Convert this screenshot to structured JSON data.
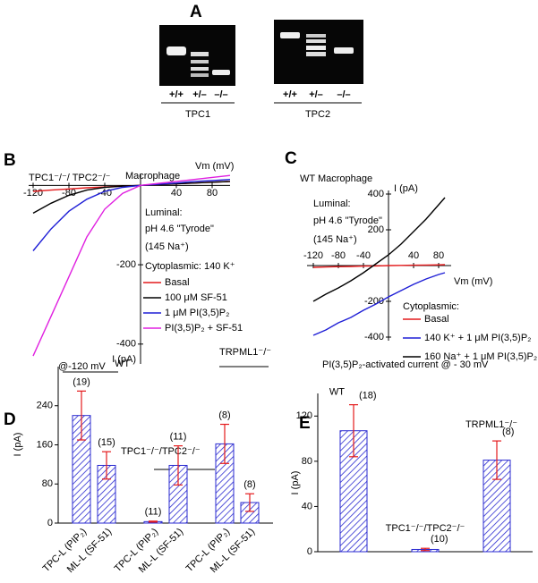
{
  "panel_a": {
    "label": "A",
    "gels": [
      {
        "name": "TPC1",
        "lanes": [
          "+/+",
          "+/–",
          "–/–"
        ]
      },
      {
        "name": "TPC2",
        "lanes": [
          "+/+",
          "+/–",
          "–/–"
        ]
      }
    ]
  },
  "chart_data": [
    {
      "panel": "B",
      "type": "line",
      "title": "TPC1⁻/⁻/ TPC2⁻/⁻",
      "subtitle": "Macrophage",
      "x_label": "Vm (mV)",
      "y_label": "I (pA)",
      "annotations": [
        "Luminal:",
        "pH 4.6 \"Tyrode\"",
        "(145 Na⁺)",
        "Cytoplasmic: 140 K⁺"
      ],
      "x": [
        -120,
        -100,
        -80,
        -60,
        -40,
        -20,
        0,
        20,
        40,
        60,
        80,
        100
      ],
      "series": [
        {
          "name": "Basal",
          "color": "#e41a1c",
          "values": [
            -15,
            -12,
            -9,
            -6,
            -4,
            -2,
            0,
            2,
            4,
            6,
            8,
            10
          ]
        },
        {
          "name": "100 μM SF-51",
          "color": "#000000",
          "values": [
            -70,
            -45,
            -25,
            -12,
            -5,
            -2,
            0,
            2,
            4,
            6,
            8,
            10
          ]
        },
        {
          "name": "1 μM PI(3,5)P₂",
          "color": "#1f1fd6",
          "values": [
            -165,
            -110,
            -65,
            -35,
            -15,
            -5,
            0,
            3,
            6,
            10,
            12,
            15
          ]
        },
        {
          "name": "PI(3,5)P₂ + SF-51",
          "color": "#e020e0",
          "values": [
            -430,
            -330,
            -230,
            -130,
            -60,
            -20,
            0,
            5,
            10,
            15,
            20,
            25
          ]
        }
      ],
      "xlim": [
        -125,
        100
      ],
      "ylim": [
        -450,
        30
      ],
      "xticks": [
        -120,
        -80,
        -40,
        40,
        80
      ],
      "yticks": [
        -400,
        -200
      ]
    },
    {
      "panel": "C",
      "type": "line",
      "title": "WT Macrophage",
      "x_label": "Vm (mV)",
      "y_label": "I (pA)",
      "annotations": [
        "Luminal:",
        "pH 4.6 \"Tyrode\"",
        "(145 Na⁺)",
        "Cytoplasmic:"
      ],
      "x": [
        -120,
        -100,
        -80,
        -60,
        -40,
        -20,
        0,
        20,
        40,
        60,
        80,
        90
      ],
      "series": [
        {
          "name": "Basal",
          "color": "#e41a1c",
          "values": [
            -10,
            -8,
            -6,
            -5,
            -3,
            -2,
            0,
            1,
            2,
            3,
            4,
            5
          ]
        },
        {
          "name": "140 K⁺ + 1 μM PI(3,5)P₂",
          "color": "#1f1fd6",
          "values": [
            -390,
            -360,
            -320,
            -290,
            -250,
            -215,
            -175,
            -140,
            -105,
            -75,
            -50,
            -40
          ]
        },
        {
          "name": "160 Na⁺ + 1 μM PI(3,5)P₂",
          "color": "#000000",
          "values": [
            -200,
            -160,
            -125,
            -85,
            -40,
            10,
            60,
            120,
            190,
            260,
            340,
            380
          ]
        }
      ],
      "xlim": [
        -130,
        100
      ],
      "ylim": [
        -420,
        420
      ],
      "xticks": [
        -120,
        -80,
        -40,
        40,
        80
      ],
      "yticks": [
        -400,
        -200,
        200,
        400
      ]
    },
    {
      "panel": "D",
      "type": "bar",
      "title": "@-120 mV",
      "y_label": "I (pA)",
      "groups": [
        "WT",
        "TPC1⁻/⁻/TPC2⁻/⁻",
        "TRPML1⁻/⁻"
      ],
      "categories": [
        "TPC-L (PIP₂)",
        "ML-L (SF-51)",
        "TPC-L (PIP₂)",
        "ML-L (SF-51)",
        "TPC-L (PIP₂)",
        "ML-L (SF-51)"
      ],
      "category_colors": [
        "#000000",
        "#e020e0",
        "#000000",
        "#e020e0",
        "#000000",
        "#e020e0"
      ],
      "values": [
        220,
        118,
        3,
        118,
        162,
        42
      ],
      "errors": [
        50,
        28,
        1,
        40,
        40,
        18
      ],
      "n_labels": [
        "(19)",
        "(15)",
        "(11)",
        "(11)",
        "(8)",
        "(8)"
      ],
      "color": "#2a2ad0",
      "error_color": "#e41a1c",
      "ylim": [
        0,
        320
      ],
      "yticks": [
        0,
        80,
        160,
        240
      ]
    },
    {
      "panel": "E",
      "type": "bar",
      "title": "PI(3,5)P₂-activated current @ - 30 mV",
      "y_label": "I (pA)",
      "categories": [
        "WT",
        "TPC1⁻/⁻/TPC2⁻/⁻",
        "TRPML1⁻/⁻"
      ],
      "values": [
        107,
        2,
        81
      ],
      "errors": [
        23,
        1,
        17
      ],
      "n_labels": [
        "(18)",
        "(10)",
        "(8)"
      ],
      "color": "#2a2ad0",
      "error_color": "#e41a1c",
      "ylim": [
        0,
        140
      ],
      "yticks": [
        0,
        40,
        80,
        120
      ]
    }
  ]
}
